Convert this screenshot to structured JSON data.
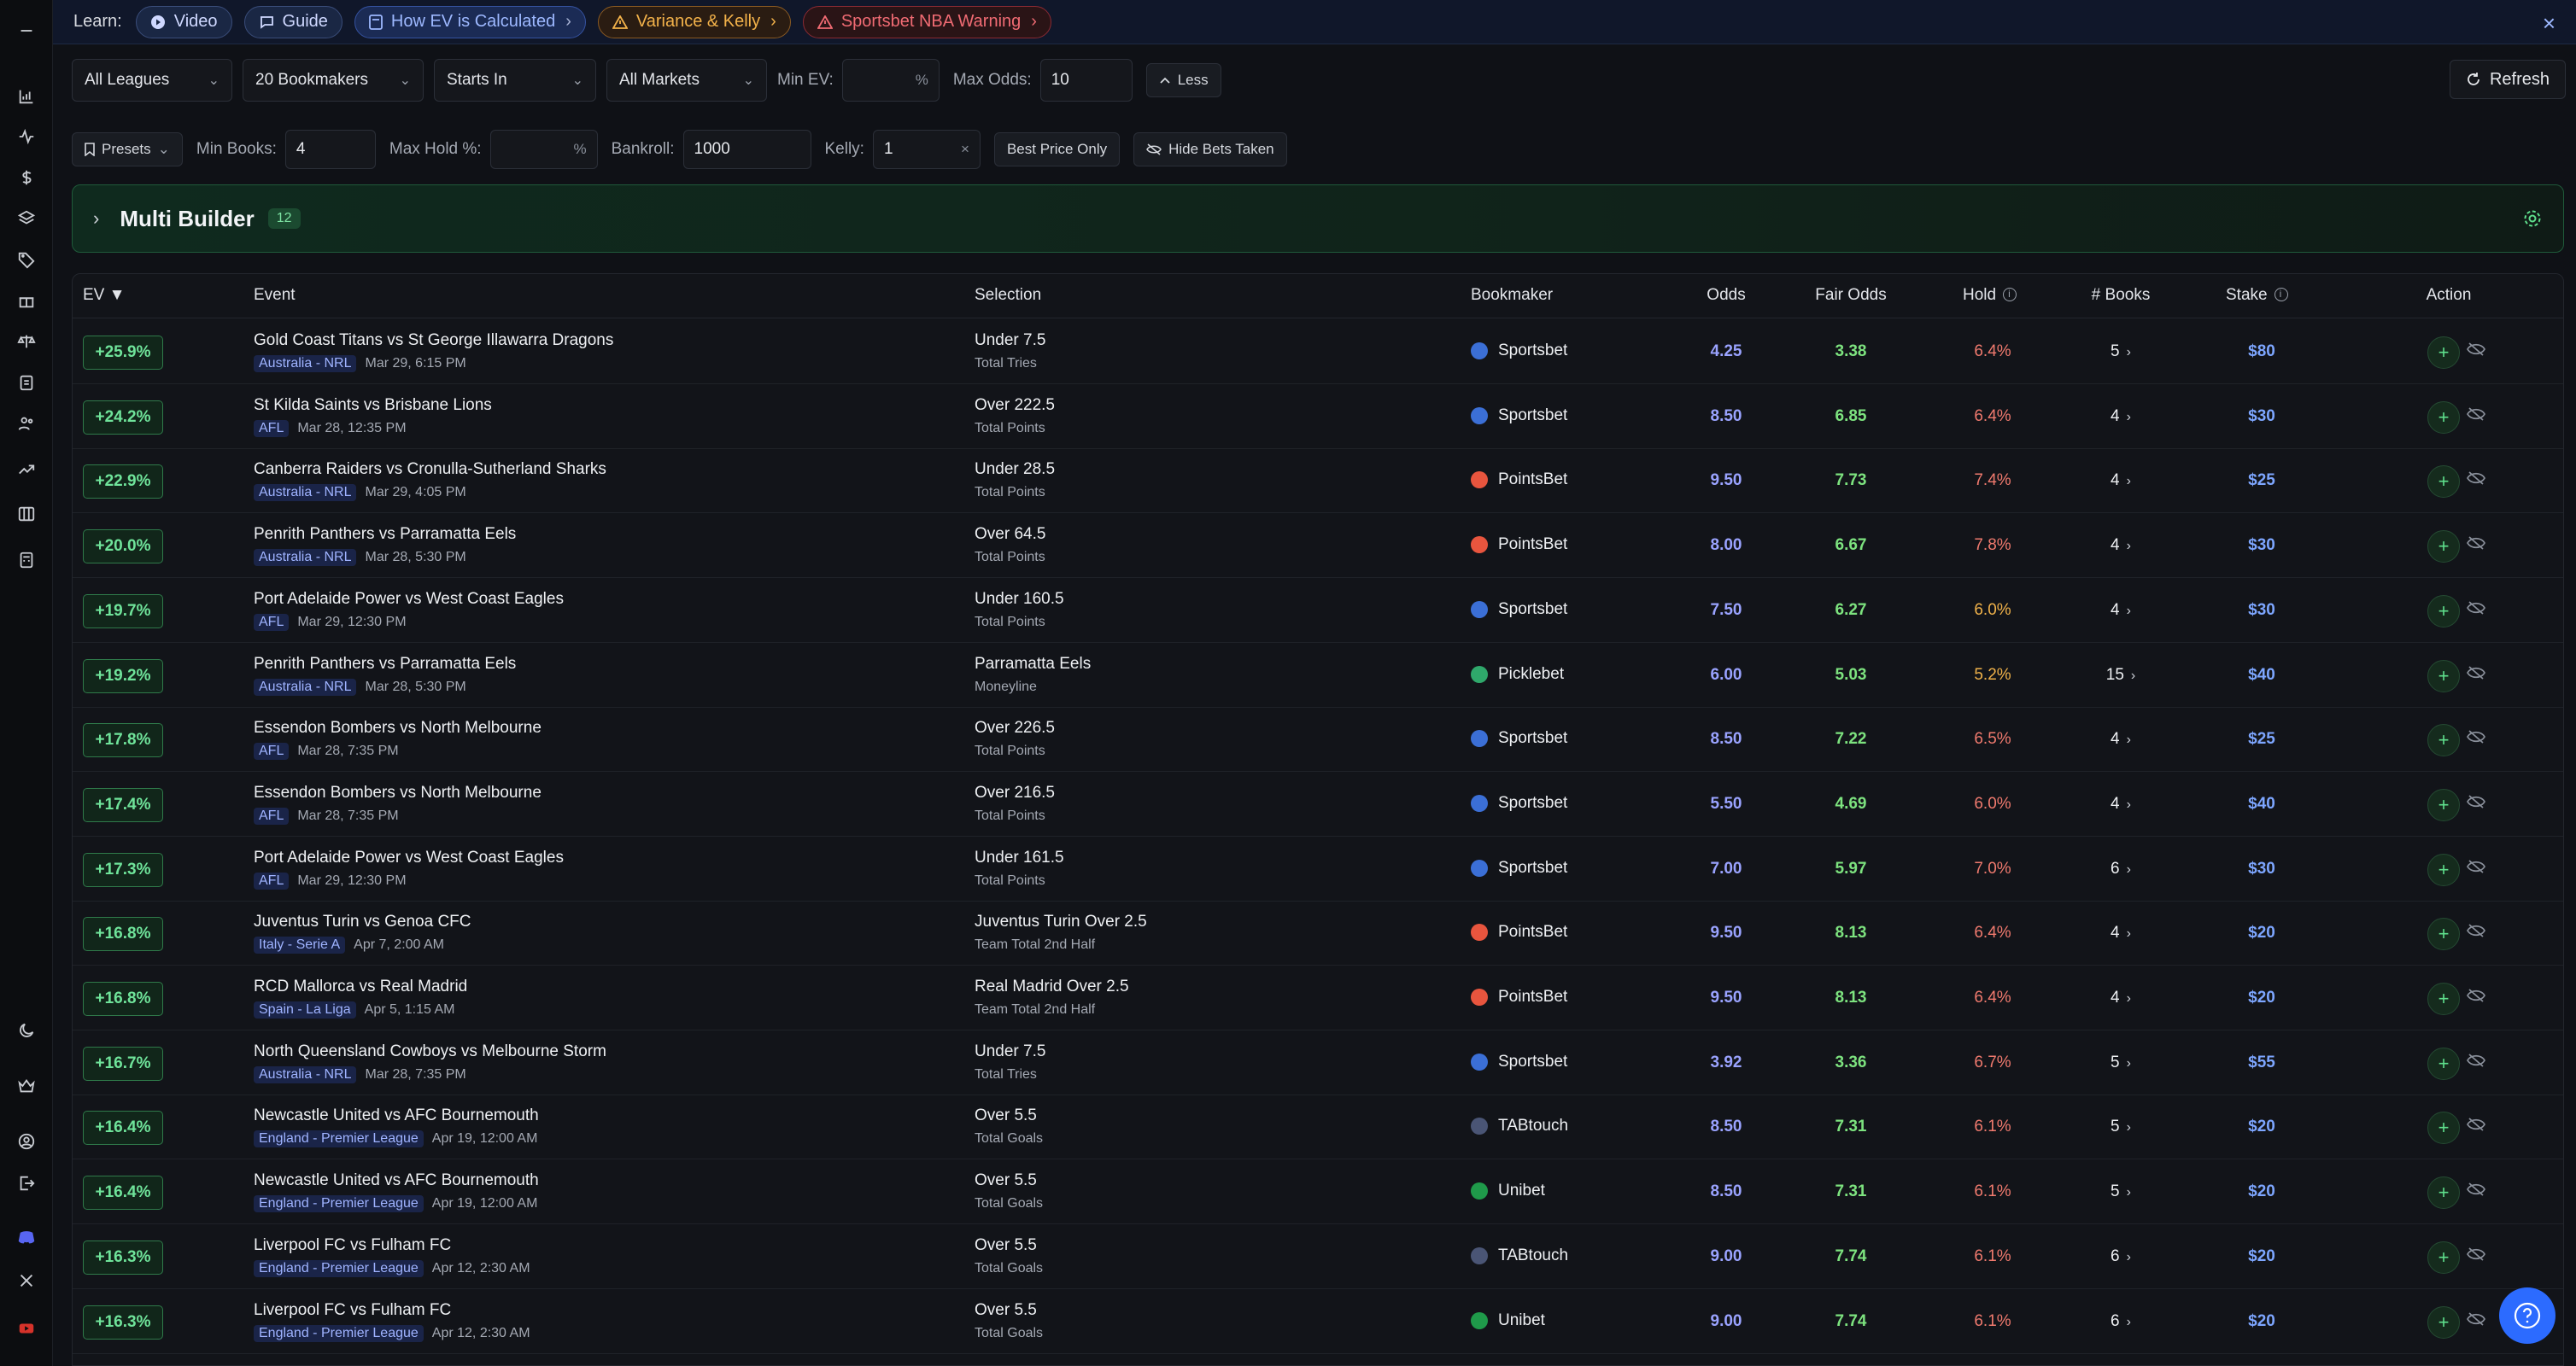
{
  "rail": {
    "icons": [
      "menu-icon",
      "chart-bars-icon",
      "activity-icon",
      "dollar-icon",
      "layers-icon",
      "tag-icon",
      "gift-icon",
      "scale-icon",
      "clipboard-icon",
      "users-icon",
      "trending-icon",
      "columns-icon",
      "calculator-icon",
      "moon-icon",
      "crown-icon",
      "account-icon",
      "logout-icon",
      "discord-icon",
      "x-icon",
      "youtube-icon"
    ]
  },
  "learn": {
    "label": "Learn:",
    "pills": [
      {
        "label": "Video",
        "icon": "play-icon"
      },
      {
        "label": "Guide",
        "icon": "chat-icon"
      },
      {
        "label": "How EV is Calculated",
        "icon": "calculator-icon"
      },
      {
        "label": "Variance & Kelly",
        "icon": "warning-icon"
      },
      {
        "label": "Sportsbet NBA Warning",
        "icon": "warning-icon"
      }
    ]
  },
  "filters": {
    "leagues": "All Leagues",
    "bookmakers": "20 Bookmakers",
    "starts_in": "Starts In",
    "markets": "All Markets",
    "min_ev_label": "Min EV:",
    "min_ev_value": "",
    "min_ev_suffix": "%",
    "max_odds_label": "Max Odds:",
    "max_odds_value": "10",
    "less_label": "Less",
    "refresh_label": "Refresh",
    "presets_label": "Presets",
    "min_books_label": "Min Books:",
    "min_books_value": "4",
    "max_hold_label": "Max Hold %:",
    "max_hold_value": "",
    "max_hold_suffix": "%",
    "bankroll_label": "Bankroll:",
    "bankroll_value": "1000",
    "kelly_label": "Kelly:",
    "kelly_value": "1",
    "kelly_clear": "×",
    "best_price_label": "Best Price Only",
    "hide_bets_label": "Hide Bets Taken"
  },
  "multi_builder": {
    "title": "Multi Builder",
    "count": "12"
  },
  "table": {
    "headers": {
      "ev": "EV ▼",
      "event": "Event",
      "selection": "Selection",
      "bookmaker": "Bookmaker",
      "odds": "Odds",
      "fair_odds": "Fair Odds",
      "hold": "Hold",
      "books": "# Books",
      "stake": "Stake",
      "action": "Action"
    },
    "rows": [
      {
        "ev": "+25.9%",
        "event": "Gold Coast Titans vs St George Illawarra Dragons",
        "league": "Australia - NRL",
        "time": "Mar 29, 6:15 PM",
        "selection": "Under 7.5",
        "market": "Total Tries",
        "bookmaker": "Sportsbet",
        "book_color": "#3b6fd6",
        "odds": "4.25",
        "fair": "3.38",
        "hold": "6.4%",
        "hold_amber": false,
        "books": "5",
        "stake": "$80"
      },
      {
        "ev": "+24.2%",
        "event": "St Kilda Saints vs Brisbane Lions",
        "league": "AFL",
        "time": "Mar 28, 12:35 PM",
        "selection": "Over 222.5",
        "market": "Total Points",
        "bookmaker": "Sportsbet",
        "book_color": "#3b6fd6",
        "odds": "8.50",
        "fair": "6.85",
        "hold": "6.4%",
        "hold_amber": false,
        "books": "4",
        "stake": "$30"
      },
      {
        "ev": "+22.9%",
        "event": "Canberra Raiders vs Cronulla-Sutherland Sharks",
        "league": "Australia - NRL",
        "time": "Mar 29, 4:05 PM",
        "selection": "Under 28.5",
        "market": "Total Points",
        "bookmaker": "PointsBet",
        "book_color": "#e8553e",
        "odds": "9.50",
        "fair": "7.73",
        "hold": "7.4%",
        "hold_amber": false,
        "books": "4",
        "stake": "$25"
      },
      {
        "ev": "+20.0%",
        "event": "Penrith Panthers vs Parramatta Eels",
        "league": "Australia - NRL",
        "time": "Mar 28, 5:30 PM",
        "selection": "Over 64.5",
        "market": "Total Points",
        "bookmaker": "PointsBet",
        "book_color": "#e8553e",
        "odds": "8.00",
        "fair": "6.67",
        "hold": "7.8%",
        "hold_amber": false,
        "books": "4",
        "stake": "$30"
      },
      {
        "ev": "+19.7%",
        "event": "Port Adelaide Power vs West Coast Eagles",
        "league": "AFL",
        "time": "Mar 29, 12:30 PM",
        "selection": "Under 160.5",
        "market": "Total Points",
        "bookmaker": "Sportsbet",
        "book_color": "#3b6fd6",
        "odds": "7.50",
        "fair": "6.27",
        "hold": "6.0%",
        "hold_amber": true,
        "books": "4",
        "stake": "$30"
      },
      {
        "ev": "+19.2%",
        "event": "Penrith Panthers vs Parramatta Eels",
        "league": "Australia - NRL",
        "time": "Mar 28, 5:30 PM",
        "selection": "Parramatta Eels",
        "market": "Moneyline",
        "bookmaker": "Picklebet",
        "book_color": "#2fa86b",
        "odds": "6.00",
        "fair": "5.03",
        "hold": "5.2%",
        "hold_amber": true,
        "books": "15",
        "stake": "$40"
      },
      {
        "ev": "+17.8%",
        "event": "Essendon Bombers vs North Melbourne",
        "league": "AFL",
        "time": "Mar 28, 7:35 PM",
        "selection": "Over 226.5",
        "market": "Total Points",
        "bookmaker": "Sportsbet",
        "book_color": "#3b6fd6",
        "odds": "8.50",
        "fair": "7.22",
        "hold": "6.5%",
        "hold_amber": false,
        "books": "4",
        "stake": "$25"
      },
      {
        "ev": "+17.4%",
        "event": "Essendon Bombers vs North Melbourne",
        "league": "AFL",
        "time": "Mar 28, 7:35 PM",
        "selection": "Over 216.5",
        "market": "Total Points",
        "bookmaker": "Sportsbet",
        "book_color": "#3b6fd6",
        "odds": "5.50",
        "fair": "4.69",
        "hold": "6.0%",
        "hold_amber": false,
        "books": "4",
        "stake": "$40"
      },
      {
        "ev": "+17.3%",
        "event": "Port Adelaide Power vs West Coast Eagles",
        "league": "AFL",
        "time": "Mar 29, 12:30 PM",
        "selection": "Under 161.5",
        "market": "Total Points",
        "bookmaker": "Sportsbet",
        "book_color": "#3b6fd6",
        "odds": "7.00",
        "fair": "5.97",
        "hold": "7.0%",
        "hold_amber": false,
        "books": "6",
        "stake": "$30"
      },
      {
        "ev": "+16.8%",
        "event": "Juventus Turin vs Genoa CFC",
        "league": "Italy - Serie A",
        "time": "Apr 7, 2:00 AM",
        "selection": "Juventus Turin Over 2.5",
        "market": "Team Total 2nd Half",
        "bookmaker": "PointsBet",
        "book_color": "#e8553e",
        "odds": "9.50",
        "fair": "8.13",
        "hold": "6.4%",
        "hold_amber": false,
        "books": "4",
        "stake": "$20"
      },
      {
        "ev": "+16.8%",
        "event": "RCD Mallorca vs Real Madrid",
        "league": "Spain - La Liga",
        "time": "Apr 5, 1:15 AM",
        "selection": "Real Madrid Over 2.5",
        "market": "Team Total 2nd Half",
        "bookmaker": "PointsBet",
        "book_color": "#e8553e",
        "odds": "9.50",
        "fair": "8.13",
        "hold": "6.4%",
        "hold_amber": false,
        "books": "4",
        "stake": "$20"
      },
      {
        "ev": "+16.7%",
        "event": "North Queensland Cowboys vs Melbourne Storm",
        "league": "Australia - NRL",
        "time": "Mar 28, 7:35 PM",
        "selection": "Under 7.5",
        "market": "Total Tries",
        "bookmaker": "Sportsbet",
        "book_color": "#3b6fd6",
        "odds": "3.92",
        "fair": "3.36",
        "hold": "6.7%",
        "hold_amber": false,
        "books": "5",
        "stake": "$55"
      },
      {
        "ev": "+16.4%",
        "event": "Newcastle United vs AFC Bournemouth",
        "league": "England - Premier League",
        "time": "Apr 19, 12:00 AM",
        "selection": "Over 5.5",
        "market": "Total Goals",
        "bookmaker": "TABtouch",
        "book_color": "#4a5575",
        "odds": "8.50",
        "fair": "7.31",
        "hold": "6.1%",
        "hold_amber": false,
        "books": "5",
        "stake": "$20"
      },
      {
        "ev": "+16.4%",
        "event": "Newcastle United vs AFC Bournemouth",
        "league": "England - Premier League",
        "time": "Apr 19, 12:00 AM",
        "selection": "Over 5.5",
        "market": "Total Goals",
        "bookmaker": "Unibet",
        "book_color": "#1f9a4a",
        "odds": "8.50",
        "fair": "7.31",
        "hold": "6.1%",
        "hold_amber": false,
        "books": "5",
        "stake": "$20"
      },
      {
        "ev": "+16.3%",
        "event": "Liverpool FC vs Fulham FC",
        "league": "England - Premier League",
        "time": "Apr 12, 2:30 AM",
        "selection": "Over 5.5",
        "market": "Total Goals",
        "bookmaker": "TABtouch",
        "book_color": "#4a5575",
        "odds": "9.00",
        "fair": "7.74",
        "hold": "6.1%",
        "hold_amber": false,
        "books": "6",
        "stake": "$20"
      },
      {
        "ev": "+16.3%",
        "event": "Liverpool FC vs Fulham FC",
        "league": "England - Premier League",
        "time": "Apr 12, 2:30 AM",
        "selection": "Over 5.5",
        "market": "Total Goals",
        "bookmaker": "Unibet",
        "book_color": "#1f9a4a",
        "odds": "9.00",
        "fair": "7.74",
        "hold": "6.1%",
        "hold_amber": false,
        "books": "6",
        "stake": "$20"
      }
    ]
  }
}
